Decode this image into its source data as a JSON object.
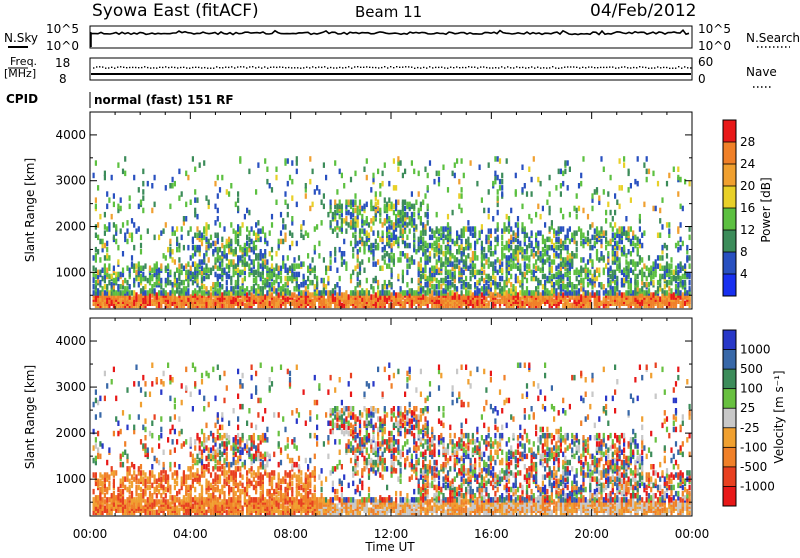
{
  "header": {
    "title": "Syowa East (fitACF)",
    "beam": "Beam 11",
    "date": "04/Feb/2012"
  },
  "nsky_panel": {
    "left_label": "N.Sky",
    "right_label": "N.Search",
    "left_ticks": [
      "10^5",
      "10^0"
    ],
    "right_ticks": [
      "10^5",
      "10^0"
    ]
  },
  "freq_panel": {
    "left_label_top": "Freq.",
    "left_label_unit": "[MHz]",
    "left_ticks": [
      "18",
      "8"
    ],
    "right_label": "Nave",
    "right_ticks": [
      "60",
      "0"
    ]
  },
  "cpid": {
    "label": "CPID",
    "text": "normal (fast) 151 RF"
  },
  "x_axis": {
    "label": "Time UT",
    "ticks": [
      "00:00",
      "04:00",
      "08:00",
      "12:00",
      "16:00",
      "20:00",
      "00:00"
    ]
  },
  "chart_data": [
    {
      "type": "heatmap",
      "quantity": "Power",
      "colorbar_label": "Power [dB]",
      "colorbar_ticks": [
        "28",
        "24",
        "20",
        "16",
        "12",
        "8",
        "4"
      ],
      "colorbar_colors": [
        "#e81818",
        "#f08028",
        "#f0a030",
        "#e8d028",
        "#5cc040",
        "#3c8c5a",
        "#2850c0",
        "#1830f0"
      ],
      "ylabel": "Slant Range [km]",
      "yticks": [
        "4000",
        "3000",
        "2000",
        "1000"
      ],
      "ylim": [
        200,
        4500
      ],
      "xlabel": "Time UT",
      "xlim_hours": [
        0,
        24
      ]
    },
    {
      "type": "heatmap",
      "quantity": "Velocity",
      "colorbar_label": "Velocity [m s⁻¹]",
      "colorbar_ticks": [
        "1000",
        "500",
        "100",
        "25",
        "-25",
        "-100",
        "-500",
        "-1000"
      ],
      "colorbar_colors": [
        "#2838c8",
        "#3868a8",
        "#3c8c5a",
        "#68c040",
        "#c8c8c8",
        "#f0a030",
        "#f08028",
        "#e84020",
        "#e81818"
      ],
      "ylabel": "Slant Range [km]",
      "yticks": [
        "4000",
        "3000",
        "2000",
        "1000"
      ],
      "ylim": [
        200,
        4500
      ],
      "xlabel": "Time UT",
      "xlim_hours": [
        0,
        24
      ]
    }
  ]
}
